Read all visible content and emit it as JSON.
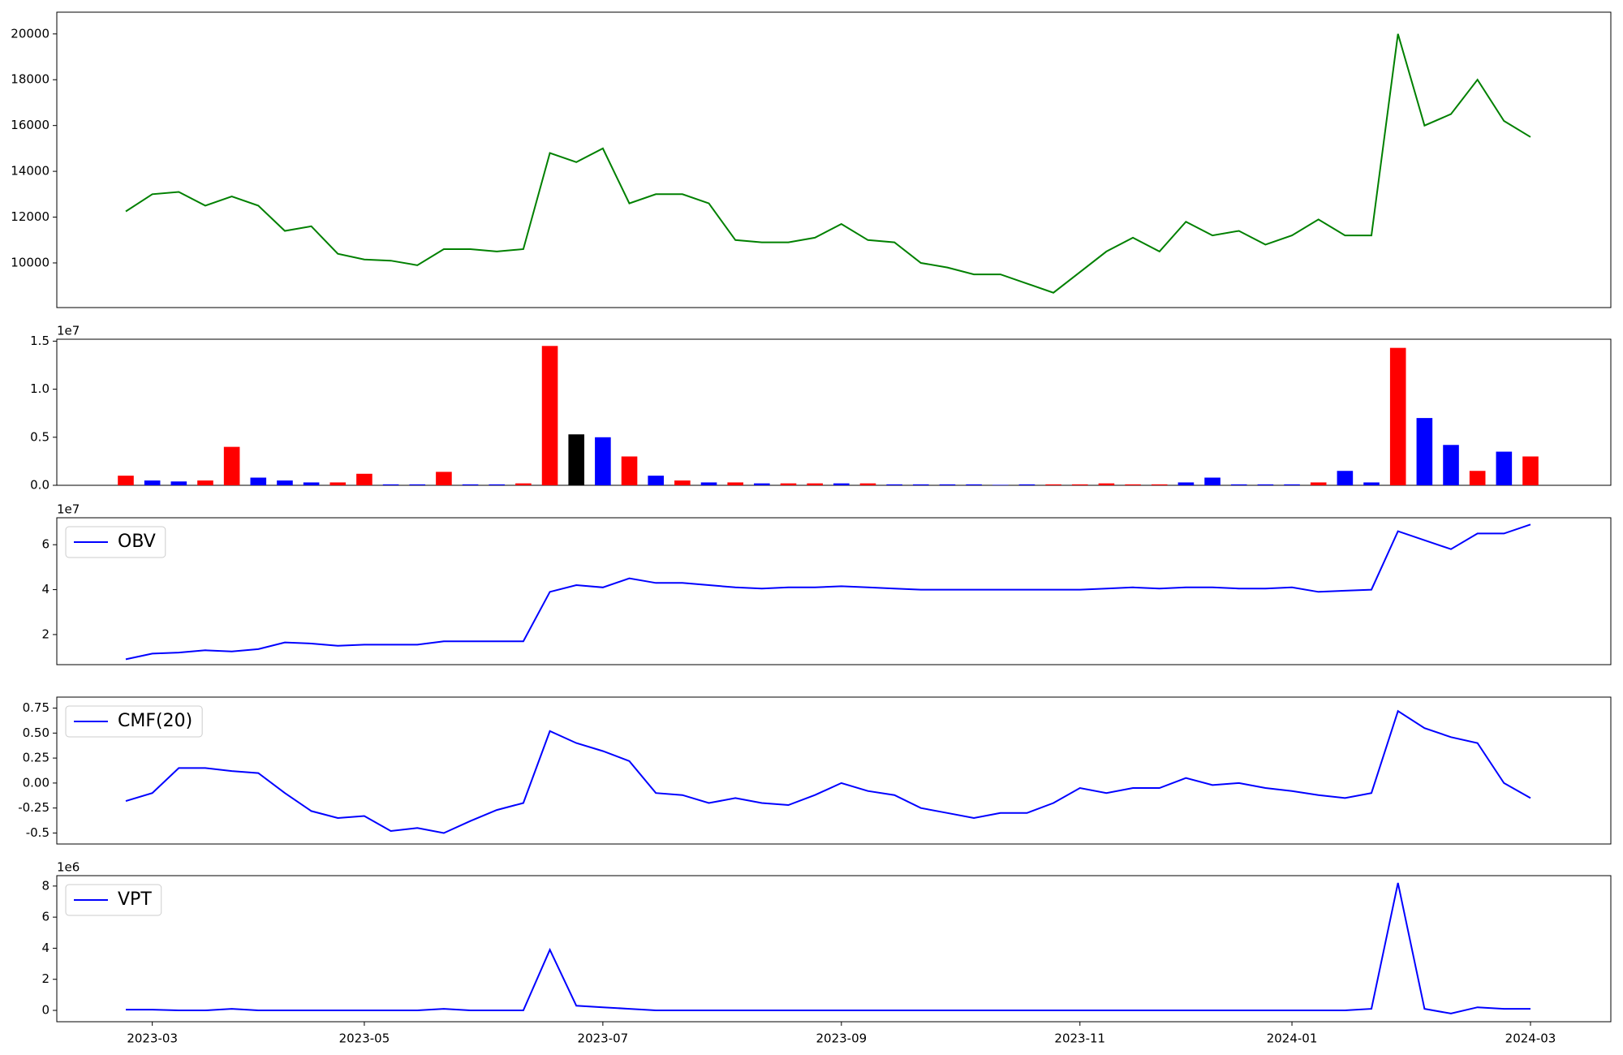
{
  "chart_data": [
    {
      "type": "line",
      "color": "#008000",
      "values": [
        12250,
        13000,
        13100,
        12500,
        12900,
        12500,
        11400,
        11600,
        10400,
        10150,
        10100,
        9900,
        10600,
        10600,
        10500,
        10600,
        14800,
        14400,
        15000,
        12600,
        13000,
        13000,
        12600,
        11000,
        10900,
        10900,
        11100,
        11700,
        11000,
        10900,
        10000,
        9800,
        9500,
        9500,
        9100,
        8700,
        9600,
        10500,
        11100,
        10500,
        11800,
        11200,
        11400,
        10800,
        11200,
        11900,
        11200,
        11200,
        20000,
        16000,
        16500,
        18000,
        16200,
        15500
      ],
      "ylim": [
        8050,
        20950
      ],
      "yticks": [
        10000,
        12000,
        14000,
        16000,
        18000,
        20000
      ]
    },
    {
      "type": "bar",
      "offset_label": "1e7",
      "values": [
        0.1,
        0.05,
        0.04,
        0.05,
        0.4,
        0.08,
        0.05,
        0.03,
        0.03,
        0.12,
        0.01,
        0.01,
        0.14,
        0.01,
        0.01,
        0.02,
        1.45,
        0.53,
        0.5,
        0.3,
        0.1,
        0.05,
        0.03,
        0.03,
        0.02,
        0.02,
        0.02,
        0.02,
        0.02,
        0.01,
        0.01,
        0.01,
        0.01,
        0.005,
        0.01,
        0.01,
        0.01,
        0.02,
        0.01,
        0.01,
        0.03,
        0.08,
        0.01,
        0.01,
        0.01,
        0.03,
        0.15,
        0.03,
        1.43,
        0.7,
        0.42,
        0.15,
        0.35,
        0.3
      ],
      "colors": [
        "#ff0000",
        "#0000ff",
        "#0000ff",
        "#ff0000",
        "#ff0000",
        "#0000ff",
        "#0000ff",
        "#0000ff",
        "#ff0000",
        "#ff0000",
        "#0000ff",
        "#0000ff",
        "#ff0000",
        "#0000ff",
        "#0000ff",
        "#ff0000",
        "#ff0000",
        "#000000",
        "#0000ff",
        "#ff0000",
        "#0000ff",
        "#ff0000",
        "#0000ff",
        "#ff0000",
        "#0000ff",
        "#ff0000",
        "#ff0000",
        "#0000ff",
        "#ff0000",
        "#0000ff",
        "#0000ff",
        "#0000ff",
        "#0000ff",
        "#0000ff",
        "#0000ff",
        "#ff0000",
        "#ff0000",
        "#ff0000",
        "#ff0000",
        "#ff0000",
        "#0000ff",
        "#0000ff",
        "#0000ff",
        "#0000ff",
        "#0000ff",
        "#ff0000",
        "#0000ff",
        "#0000ff",
        "#ff0000",
        "#0000ff",
        "#0000ff",
        "#ff0000",
        "#0000ff",
        "#ff0000"
      ],
      "ylim": [
        0,
        1.52
      ],
      "yticks": [
        {
          "value": 0,
          "label": "0.0"
        },
        0.5,
        {
          "value": 1,
          "label": "1.0"
        },
        1.5
      ]
    },
    {
      "type": "line",
      "offset_label": "1e7",
      "legend": "upper left",
      "series": [
        {
          "name": "OBV",
          "color": "#0000ff",
          "values": [
            0.9,
            1.15,
            1.2,
            1.3,
            1.25,
            1.35,
            1.65,
            1.6,
            1.5,
            1.55,
            1.55,
            1.55,
            1.7,
            1.7,
            1.7,
            1.7,
            3.9,
            4.2,
            4.1,
            4.5,
            4.3,
            4.3,
            4.2,
            4.1,
            4.05,
            4.1,
            4.1,
            4.15,
            4.1,
            4.05,
            4.0,
            4.0,
            4.0,
            4.0,
            4.0,
            4.0,
            4.0,
            4.05,
            4.1,
            4.05,
            4.1,
            4.1,
            4.05,
            4.05,
            4.1,
            3.9,
            3.95,
            4.0,
            6.6,
            6.2,
            5.8,
            6.5,
            6.5,
            6.9
          ]
        }
      ],
      "ylim": [
        0.66,
        7.2
      ],
      "yticks": [
        2,
        4,
        6
      ]
    },
    {
      "type": "line",
      "legend": "upper left",
      "series": [
        {
          "name": "CMF(20)",
          "color": "#0000ff",
          "values": [
            -0.18,
            -0.1,
            0.15,
            0.15,
            0.12,
            0.1,
            -0.1,
            -0.28,
            -0.35,
            -0.33,
            -0.48,
            -0.45,
            -0.5,
            -0.38,
            -0.27,
            -0.2,
            0.52,
            0.4,
            0.32,
            0.22,
            -0.1,
            -0.12,
            -0.2,
            -0.15,
            -0.2,
            -0.22,
            -0.12,
            0.0,
            -0.08,
            -0.12,
            -0.25,
            -0.3,
            -0.35,
            -0.3,
            -0.3,
            -0.2,
            -0.05,
            -0.1,
            -0.05,
            -0.05,
            0.05,
            -0.02,
            0.0,
            -0.05,
            -0.08,
            -0.12,
            -0.15,
            -0.1,
            0.72,
            0.55,
            0.46,
            0.4,
            0.0,
            -0.15
          ]
        }
      ],
      "ylim": [
        -0.61,
        0.86
      ],
      "yticks": [
        -0.5,
        -0.25,
        {
          "value": 0,
          "label": "0.00"
        },
        0.25,
        {
          "value": 0.5,
          "label": "0.50"
        },
        0.75
      ]
    },
    {
      "type": "line",
      "offset_label": "1e6",
      "legend": "upper left",
      "categories": [
        null,
        "2023-03",
        null,
        null,
        null,
        null,
        null,
        null,
        null,
        "2023-05",
        null,
        null,
        null,
        null,
        null,
        null,
        null,
        null,
        "2023-07",
        null,
        null,
        null,
        null,
        null,
        null,
        null,
        null,
        "2023-09",
        null,
        null,
        null,
        null,
        null,
        null,
        null,
        null,
        "2023-11",
        null,
        null,
        null,
        null,
        null,
        null,
        null,
        "2024-01",
        null,
        null,
        null,
        null,
        null,
        null,
        null,
        null,
        "2024-03"
      ],
      "series": [
        {
          "name": "VPT",
          "color": "#0000ff",
          "values": [
            0.05,
            0.05,
            0.0,
            0.0,
            0.1,
            0.0,
            0.0,
            0.0,
            0.0,
            0.0,
            0.0,
            0.0,
            0.1,
            0.0,
            0.0,
            0.0,
            3.9,
            0.3,
            0.2,
            0.1,
            0.0,
            0.0,
            0.0,
            0.0,
            0.0,
            0.0,
            0.0,
            0.0,
            0.0,
            0.0,
            0.0,
            0.0,
            0.0,
            0.0,
            0.0,
            0.0,
            0.0,
            0.0,
            0.0,
            0.0,
            0.0,
            0.0,
            0.0,
            0.0,
            0.0,
            0.0,
            0.0,
            0.1,
            8.2,
            0.1,
            -0.2,
            0.2,
            0.1,
            0.1
          ]
        }
      ],
      "ylim": [
        -0.73,
        8.67
      ],
      "yticks": [
        0,
        2,
        4,
        6,
        8
      ]
    }
  ]
}
